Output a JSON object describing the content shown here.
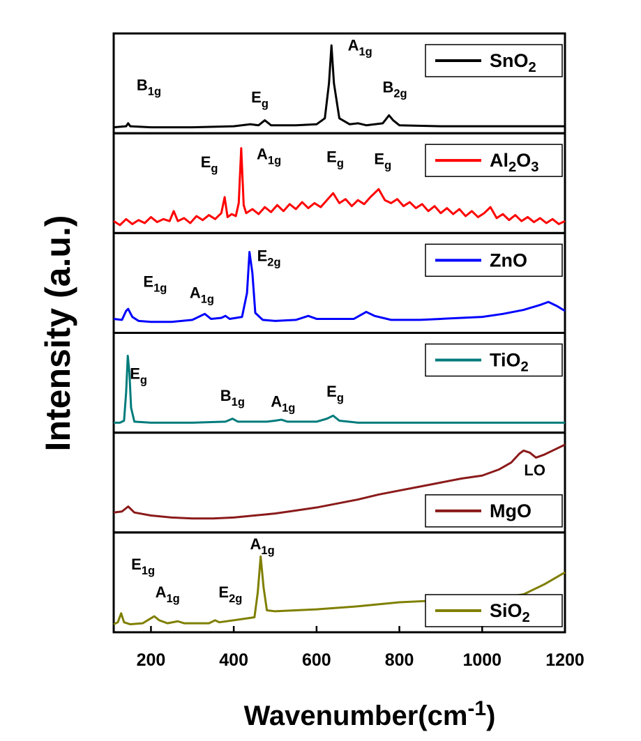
{
  "chart_data": {
    "type": "line",
    "x_label": "Wavenumber(cm-1)",
    "y_label": "Intensity (a.u.)",
    "xlim": [
      110,
      1200
    ],
    "xticks": [
      200,
      400,
      600,
      800,
      1000,
      1200
    ],
    "panels": [
      {
        "ylim": [
          0,
          100
        ],
        "legend": "upper right",
        "series": [
          {
            "name": "SnO2",
            "color": "#000000",
            "x": [
              110,
              140,
              145,
              150,
              200,
              300,
              400,
              440,
              460,
              475,
              490,
              550,
              600,
              620,
              630,
              636,
              642,
              655,
              680,
              700,
              720,
              760,
              775,
              785,
              800,
              900,
              1000,
              1100,
              1200
            ],
            "values": [
              6,
              7,
              10,
              7,
              6,
              6,
              7,
              9,
              8,
              13,
              8,
              8,
              9,
              15,
              50,
              88,
              50,
              15,
              9,
              10,
              8,
              10,
              18,
              13,
              8,
              7,
              7,
              7,
              7
            ]
          }
        ],
        "annotations": [
          {
            "text": "B1g",
            "x": 195,
            "y": 43
          },
          {
            "text": "Eg",
            "x": 463,
            "y": 31
          },
          {
            "text": "A1g",
            "x": 705,
            "y": 83
          },
          {
            "text": "B2g",
            "x": 789,
            "y": 41
          }
        ]
      },
      {
        "ylim": [
          0,
          100
        ],
        "legend": "upper right",
        "series": [
          {
            "name": "Al2O3",
            "color": "#ff0000",
            "x": [
              110,
              125,
              140,
              155,
              170,
              185,
              200,
              215,
              230,
              245,
              255,
              265,
              280,
              295,
              310,
              325,
              340,
              355,
              370,
              378,
              385,
              395,
              405,
              412,
              418,
              424,
              430,
              445,
              460,
              475,
              490,
              505,
              520,
              535,
              550,
              565,
              580,
              595,
              610,
              625,
              640,
              655,
              670,
              685,
              700,
              715,
              730,
              750,
              765,
              780,
              795,
              810,
              825,
              840,
              855,
              870,
              885,
              900,
              915,
              930,
              945,
              960,
              975,
              990,
              1005,
              1020,
              1035,
              1050,
              1065,
              1080,
              1095,
              1110,
              1125,
              1140,
              1155,
              1170,
              1185,
              1200
            ],
            "values": [
              12,
              8,
              14,
              9,
              13,
              10,
              16,
              11,
              14,
              12,
              22,
              12,
              15,
              10,
              17,
              13,
              18,
              14,
              20,
              36,
              16,
              19,
              17,
              30,
              85,
              28,
              20,
              24,
              19,
              26,
              21,
              28,
              22,
              29,
              24,
              31,
              25,
              30,
              26,
              33,
              40,
              30,
              34,
              27,
              33,
              29,
              36,
              44,
              33,
              30,
              34,
              27,
              31,
              25,
              29,
              22,
              27,
              20,
              25,
              19,
              24,
              17,
              22,
              16,
              20,
              26,
              15,
              19,
              13,
              18,
              12,
              16,
              11,
              15,
              10,
              14,
              9,
              12
            ]
          }
        ],
        "annotations": [
          {
            "text": "Eg",
            "x": 341,
            "y": 66
          },
          {
            "text": "A1g",
            "x": 485,
            "y": 74
          },
          {
            "text": "Eg",
            "x": 645,
            "y": 71
          },
          {
            "text": "Eg",
            "x": 760,
            "y": 69
          }
        ]
      },
      {
        "ylim": [
          0,
          100
        ],
        "legend": "upper right",
        "series": [
          {
            "name": "ZnO",
            "color": "#0000ff",
            "x": [
              110,
              130,
              140,
              145,
              155,
              170,
              200,
              250,
              300,
              330,
              345,
              370,
              380,
              390,
              420,
              432,
              438,
              445,
              452,
              470,
              500,
              550,
              580,
              600,
              650,
              690,
              720,
              740,
              780,
              850,
              900,
              950,
              1000,
              1050,
              1100,
              1140,
              1160,
              1180,
              1200
            ],
            "values": [
              14,
              13,
              22,
              24,
              16,
              12,
              11,
              11,
              13,
              19,
              14,
              15,
              17,
              14,
              16,
              40,
              81,
              60,
              20,
              13,
              12,
              13,
              17,
              14,
              14,
              14,
              21,
              17,
              13,
              13,
              14,
              15,
              16,
              19,
              23,
              28,
              31,
              27,
              22
            ]
          }
        ],
        "annotations": [
          {
            "text": "E1g",
            "x": 210,
            "y": 46
          },
          {
            "text": "A1g",
            "x": 323,
            "y": 35
          },
          {
            "text": "E2g",
            "x": 485,
            "y": 72
          }
        ]
      },
      {
        "ylim": [
          0,
          100
        ],
        "legend": "upper right",
        "series": [
          {
            "name": "TiO2",
            "color": "#007b7b",
            "x": [
              110,
              125,
              135,
              140,
              144,
              148,
              152,
              160,
              200,
              300,
              380,
              397,
              410,
              480,
              500,
              515,
              530,
              600,
              625,
              640,
              655,
              700,
              800,
              900,
              1000,
              1100,
              1200
            ],
            "values": [
              10,
              10,
              12,
              40,
              77,
              60,
              25,
              11,
              10,
              10,
              11,
              14,
              11,
              11,
              12,
              13,
              11,
              11,
              14,
              17,
              12,
              10,
              10,
              10,
              10,
              10,
              10
            ]
          }
        ],
        "annotations": [
          {
            "text": "Eg",
            "x": 170,
            "y": 54
          },
          {
            "text": "B1g",
            "x": 397,
            "y": 32
          },
          {
            "text": "A1g",
            "x": 519,
            "y": 26
          },
          {
            "text": "Eg",
            "x": 645,
            "y": 36
          }
        ]
      },
      {
        "ylim": [
          0,
          100
        ],
        "legend": "lower right",
        "series": [
          {
            "name": "MgO",
            "color": "#8b1a1a",
            "x": [
              110,
              130,
              145,
              160,
              200,
              250,
              300,
              350,
              400,
              450,
              500,
              550,
              600,
              650,
              700,
              750,
              800,
              850,
              900,
              950,
              1000,
              1040,
              1070,
              1090,
              1100,
              1115,
              1130,
              1150,
              1170,
              1200
            ],
            "values": [
              20,
              21,
              26,
              20,
              17,
              15,
              14,
              14,
              15,
              17,
              19,
              22,
              25,
              29,
              33,
              38,
              42,
              46,
              50,
              54,
              57,
              63,
              70,
              79,
              82,
              80,
              75,
              78,
              82,
              88
            ]
          }
        ],
        "annotations": [
          {
            "text": "LO",
            "x": 1127,
            "y": 57
          }
        ]
      },
      {
        "ylim": [
          0,
          100
        ],
        "legend": "lower right",
        "series": [
          {
            "name": "SiO2",
            "color": "#7f7f00",
            "x": [
              110,
              120,
              128,
              135,
              150,
              180,
              200,
              208,
              220,
              240,
              265,
              280,
              340,
              355,
              365,
              400,
              450,
              458,
              465,
              472,
              480,
              500,
              600,
              700,
              800,
              900,
              1000,
              1050,
              1100,
              1150,
              1200
            ],
            "values": [
              8,
              10,
              19,
              10,
              8,
              9,
              14,
              16,
              12,
              9,
              11,
              9,
              9,
              12,
              10,
              12,
              15,
              40,
              76,
              45,
              22,
              21,
              23,
              26,
              30,
              32,
              33,
              35,
              38,
              48,
              60
            ]
          }
        ],
        "annotations": [
          {
            "text": "E1g",
            "x": 181,
            "y": 63
          },
          {
            "text": "A1g",
            "x": 240,
            "y": 35
          },
          {
            "text": "E2g",
            "x": 392,
            "y": 35
          },
          {
            "text": "A1g",
            "x": 469,
            "y": 83
          }
        ]
      }
    ]
  }
}
